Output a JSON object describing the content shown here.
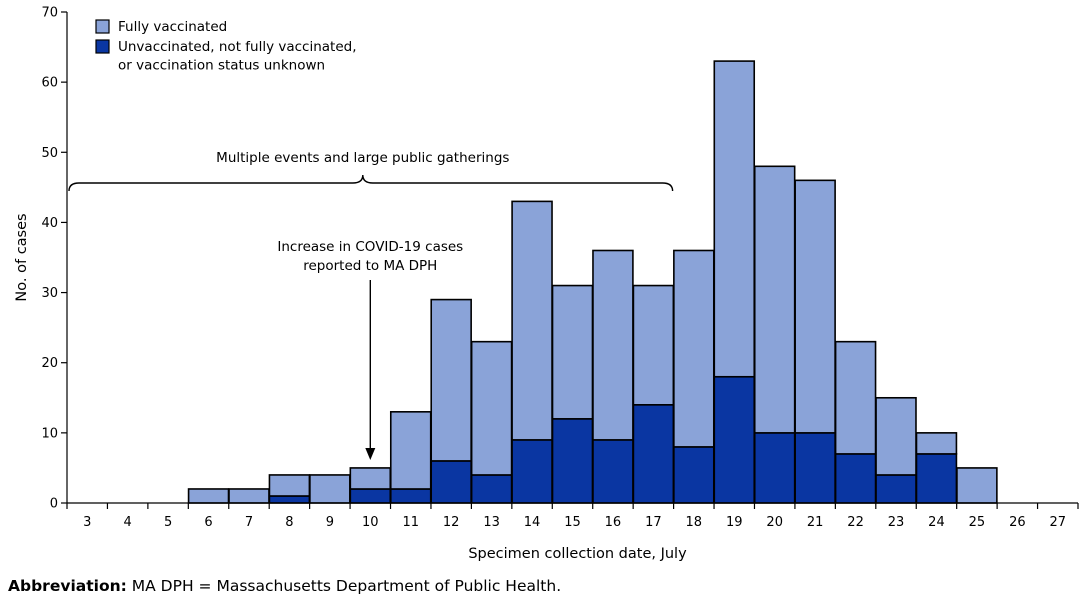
{
  "chart_data": {
    "type": "bar",
    "stacked": true,
    "categories": [
      "3",
      "4",
      "5",
      "6",
      "7",
      "8",
      "9",
      "10",
      "11",
      "12",
      "13",
      "14",
      "15",
      "16",
      "17",
      "18",
      "19",
      "20",
      "21",
      "22",
      "23",
      "24",
      "25",
      "26",
      "27"
    ],
    "series": [
      {
        "name": "Unvaccinated, not fully vaccinated, or vaccination status unknown",
        "color": "#0a36a2",
        "values": [
          0,
          0,
          0,
          0,
          0,
          1,
          0,
          2,
          2,
          6,
          4,
          9,
          12,
          9,
          14,
          8,
          18,
          10,
          10,
          7,
          4,
          7,
          0,
          0,
          0
        ]
      },
      {
        "name": "Fully vaccinated",
        "color": "#8aa3d8",
        "values": [
          0,
          0,
          0,
          2,
          2,
          3,
          4,
          3,
          11,
          23,
          19,
          34,
          19,
          27,
          17,
          28,
          45,
          38,
          36,
          16,
          11,
          3,
          5,
          0,
          0
        ]
      }
    ],
    "legend_lines": [
      [
        "Fully vaccinated"
      ],
      [
        "Unvaccinated, not fully vaccinated,",
        "or vaccination status unknown"
      ]
    ],
    "legend_position": "top-left",
    "xlabel": "Specimen collection date, July",
    "ylabel": "No. of cases",
    "ylim": [
      0,
      70
    ],
    "yticks": [
      0,
      10,
      20,
      30,
      40,
      50,
      60,
      70
    ],
    "grid": false,
    "annotations": {
      "bracket_text": "Multiple events and large public gatherings",
      "bracket_from": "3",
      "bracket_to": "17",
      "arrow_lines": [
        "Increase in COVID-19 cases",
        "reported to MA DPH"
      ],
      "arrow_category": "10"
    }
  },
  "footnote": {
    "label": "Abbreviation:",
    "text": "MA DPH = Massachusetts Department of Public Health."
  }
}
